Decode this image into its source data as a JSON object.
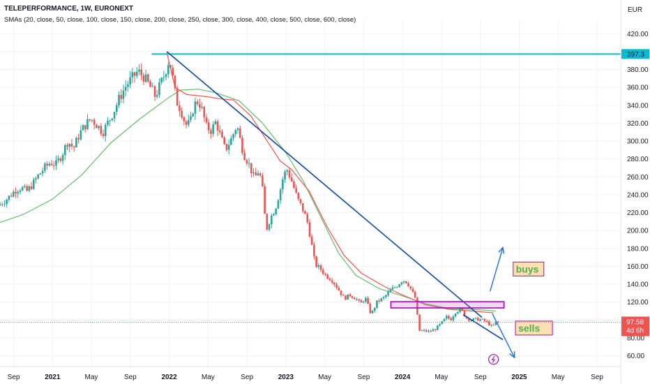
{
  "header": {
    "title": "TELEPERFORMANCE, 1W, EURONEXT",
    "indicator": "SMAs (20, close, 50, close, 100, close, 150, close, 200, close, 250, close, 300, close, 400, close, 500, close, 600, close)",
    "currency": "EUR"
  },
  "colors": {
    "up": "#26a69a",
    "down": "#ef5350",
    "sma_slow": "#66bb6a",
    "sma_fast": "#ef5350",
    "trendline": "#0d47a1",
    "arrow": "#1e6be6",
    "hline": "#00bcd4",
    "box": "#b000d0",
    "note_bg": "#ffe0b2",
    "note_border": "#b000d0"
  },
  "chart_data": {
    "type": "candlestick",
    "y_ticks": [
      "60.00",
      "80.00",
      "100.00",
      "120.00",
      "140.00",
      "160.00",
      "180.00",
      "200.00",
      "220.00",
      "240.00",
      "260.00",
      "280.00",
      "300.00",
      "320.00",
      "340.00",
      "360.00",
      "380.00",
      "400.00",
      "420.00"
    ],
    "ylim": [
      48,
      428
    ],
    "x_ticks": [
      {
        "label": "Sep",
        "bold": false
      },
      {
        "label": "2021",
        "bold": true
      },
      {
        "label": "May",
        "bold": false
      },
      {
        "label": "Sep",
        "bold": false
      },
      {
        "label": "2022",
        "bold": true
      },
      {
        "label": "May",
        "bold": false
      },
      {
        "label": "Sep",
        "bold": false
      },
      {
        "label": "2023",
        "bold": true
      },
      {
        "label": "May",
        "bold": false
      },
      {
        "label": "Sep",
        "bold": false
      },
      {
        "label": "2024",
        "bold": true
      },
      {
        "label": "May",
        "bold": false
      },
      {
        "label": "Sep",
        "bold": false
      },
      {
        "label": "2025",
        "bold": true
      },
      {
        "label": "May",
        "bold": false
      },
      {
        "label": "Sep",
        "bold": false
      }
    ],
    "xlim": [
      2020.55,
      2025.87
    ],
    "x_tick_dates": [
      2020.667,
      2021.0,
      2021.333,
      2021.667,
      2022.0,
      2022.333,
      2022.667,
      2023.0,
      2023.333,
      2023.667,
      2024.0,
      2024.333,
      2024.667,
      2025.0,
      2025.333,
      2025.667
    ],
    "price_path": [
      [
        2020.55,
        228
      ],
      [
        2020.6,
        232
      ],
      [
        2020.65,
        238
      ],
      [
        2020.7,
        245
      ],
      [
        2020.75,
        248
      ],
      [
        2020.8,
        244
      ],
      [
        2020.85,
        252
      ],
      [
        2020.9,
        262
      ],
      [
        2020.95,
        270
      ],
      [
        2021.0,
        276
      ],
      [
        2021.05,
        274
      ],
      [
        2021.1,
        285
      ],
      [
        2021.15,
        300
      ],
      [
        2021.2,
        292
      ],
      [
        2021.25,
        308
      ],
      [
        2021.3,
        318
      ],
      [
        2021.35,
        325
      ],
      [
        2021.4,
        318
      ],
      [
        2021.45,
        310
      ],
      [
        2021.5,
        322
      ],
      [
        2021.55,
        335
      ],
      [
        2021.6,
        350
      ],
      [
        2021.65,
        362
      ],
      [
        2021.7,
        370
      ],
      [
        2021.75,
        378
      ],
      [
        2021.8,
        372
      ],
      [
        2021.85,
        362
      ],
      [
        2021.9,
        350
      ],
      [
        2021.95,
        365
      ],
      [
        2021.98,
        375
      ],
      [
        2022.02,
        392
      ],
      [
        2022.05,
        370
      ],
      [
        2022.08,
        345
      ],
      [
        2022.12,
        335
      ],
      [
        2022.16,
        318
      ],
      [
        2022.2,
        320
      ],
      [
        2022.23,
        340
      ],
      [
        2022.27,
        345
      ],
      [
        2022.3,
        335
      ],
      [
        2022.34,
        315
      ],
      [
        2022.38,
        312
      ],
      [
        2022.42,
        322
      ],
      [
        2022.46,
        305
      ],
      [
        2022.5,
        290
      ],
      [
        2022.55,
        302
      ],
      [
        2022.6,
        318
      ],
      [
        2022.63,
        300
      ],
      [
        2022.66,
        285
      ],
      [
        2022.7,
        275
      ],
      [
        2022.75,
        258
      ],
      [
        2022.79,
        268
      ],
      [
        2022.82,
        245
      ],
      [
        2022.85,
        200
      ],
      [
        2022.89,
        215
      ],
      [
        2022.93,
        225
      ],
      [
        2022.97,
        245
      ],
      [
        2023.0,
        262
      ],
      [
        2023.03,
        268
      ],
      [
        2023.07,
        255
      ],
      [
        2023.12,
        235
      ],
      [
        2023.16,
        225
      ],
      [
        2023.2,
        212
      ],
      [
        2023.23,
        192
      ],
      [
        2023.27,
        162
      ],
      [
        2023.31,
        158
      ],
      [
        2023.36,
        150
      ],
      [
        2023.42,
        144
      ],
      [
        2023.48,
        132
      ],
      [
        2023.52,
        124
      ],
      [
        2023.57,
        128
      ],
      [
        2023.62,
        124
      ],
      [
        2023.66,
        118
      ],
      [
        2023.7,
        125
      ],
      [
        2023.75,
        106
      ],
      [
        2023.8,
        120
      ],
      [
        2023.86,
        125
      ],
      [
        2023.92,
        134
      ],
      [
        2023.97,
        138
      ],
      [
        2024.02,
        145
      ],
      [
        2024.06,
        142
      ],
      [
        2024.1,
        132
      ],
      [
        2024.13,
        124
      ],
      [
        2024.16,
        88
      ],
      [
        2024.2,
        88
      ],
      [
        2024.25,
        87
      ],
      [
        2024.3,
        90
      ],
      [
        2024.35,
        96
      ],
      [
        2024.4,
        104
      ],
      [
        2024.43,
        100
      ],
      [
        2024.47,
        109
      ],
      [
        2024.52,
        112
      ],
      [
        2024.56,
        103
      ],
      [
        2024.6,
        100
      ],
      [
        2024.65,
        101
      ],
      [
        2024.7,
        100
      ],
      [
        2024.74,
        98
      ],
      [
        2024.79,
        92
      ],
      [
        2024.82,
        97.58
      ]
    ],
    "current_price": "97.58",
    "countdown": "4d 6h",
    "hline_price": "397.3",
    "hline_value": 397.3,
    "trendline": [
      [
        2021.98,
        400
      ],
      [
        2024.68,
        103
      ]
    ],
    "lower_line": [
      [
        2024.52,
        106
      ],
      [
        2024.86,
        78
      ]
    ],
    "sma_slow": [
      [
        2020.55,
        209
      ],
      [
        2020.75,
        218
      ],
      [
        2021.0,
        235
      ],
      [
        2021.25,
        262
      ],
      [
        2021.5,
        298
      ],
      [
        2021.75,
        325
      ],
      [
        2022.0,
        349
      ],
      [
        2022.1,
        357
      ],
      [
        2022.25,
        358
      ],
      [
        2022.4,
        354
      ],
      [
        2022.6,
        345
      ],
      [
        2022.8,
        320
      ],
      [
        2023.0,
        287
      ],
      [
        2023.15,
        255
      ],
      [
        2023.3,
        215
      ],
      [
        2023.45,
        175
      ],
      [
        2023.6,
        150
      ],
      [
        2023.8,
        135
      ],
      [
        2024.0,
        127
      ],
      [
        2024.2,
        118
      ],
      [
        2024.4,
        113
      ],
      [
        2024.6,
        112
      ],
      [
        2024.8,
        110
      ]
    ],
    "sma_fast": [
      [
        2021.98,
        399
      ],
      [
        2022.05,
        360
      ],
      [
        2022.15,
        352
      ],
      [
        2022.3,
        350
      ],
      [
        2022.45,
        347
      ],
      [
        2022.55,
        346
      ],
      [
        2022.7,
        328
      ],
      [
        2022.85,
        298
      ],
      [
        2022.95,
        278
      ],
      [
        2023.05,
        268
      ],
      [
        2023.2,
        244
      ],
      [
        2023.35,
        205
      ],
      [
        2023.5,
        172
      ],
      [
        2023.65,
        152
      ],
      [
        2023.85,
        137
      ],
      [
        2024.0,
        128
      ],
      [
        2024.2,
        117
      ],
      [
        2024.4,
        112
      ],
      [
        2024.6,
        110
      ],
      [
        2024.78,
        108
      ]
    ],
    "box": {
      "x0": 2023.9,
      "x1": 2024.87,
      "y0": 113.5,
      "y1": 120.5
    },
    "buy_arrow": [
      [
        2024.75,
        132
      ],
      [
        2024.86,
        181
      ]
    ],
    "sell_arrow": [
      [
        2024.77,
        107
      ],
      [
        2024.96,
        58
      ]
    ],
    "buys_label": "buys",
    "sells_label": "sells",
    "buys_pos": [
      2024.96,
      157
    ],
    "sells_pos": [
      2024.98,
      91
    ],
    "flash_pos": [
      2024.78,
      56
    ]
  }
}
